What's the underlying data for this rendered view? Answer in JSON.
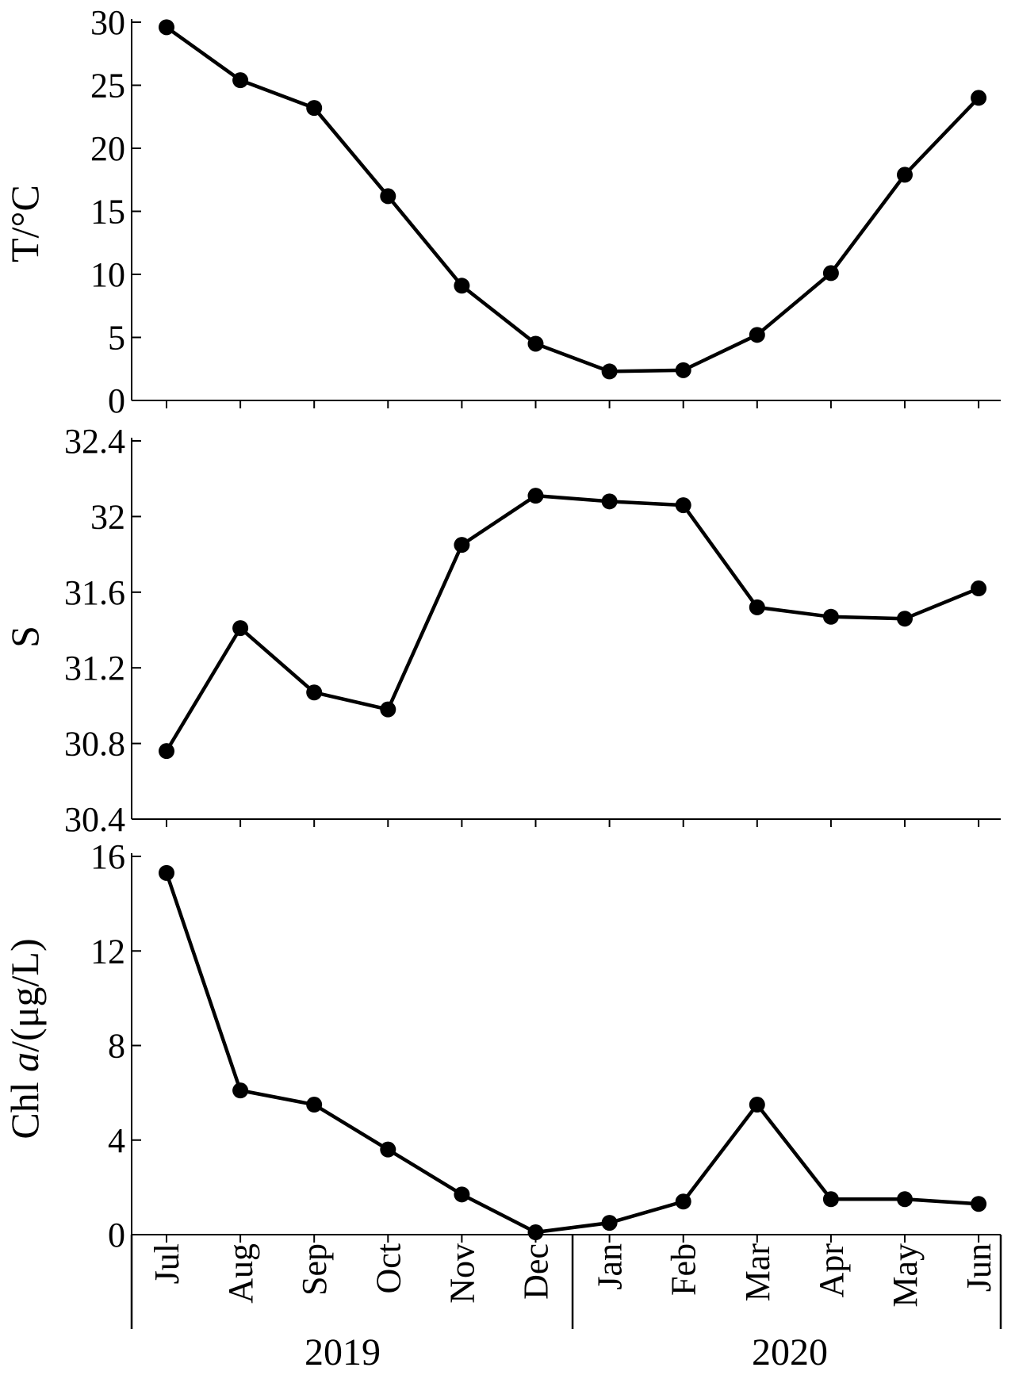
{
  "chart_data": [
    {
      "type": "line",
      "ylabel": "T/°C",
      "ylim": [
        0,
        30
      ],
      "yticks": [
        "0",
        "5",
        "10",
        "15",
        "20",
        "25",
        "30"
      ],
      "categories": [
        "Jul",
        "Aug",
        "Sep",
        "Oct",
        "Nov",
        "Dec",
        "Jan",
        "Feb",
        "Mar",
        "Apr",
        "May",
        "Jun"
      ],
      "values": [
        29.6,
        25.4,
        23.2,
        16.2,
        9.1,
        4.5,
        2.3,
        2.4,
        5.2,
        10.1,
        17.9,
        24.0
      ]
    },
    {
      "type": "line",
      "ylabel": "S",
      "ylim": [
        30.4,
        32.4
      ],
      "yticks": [
        "30.4",
        "30.8",
        "31.2",
        "31.6",
        "32",
        "32.4"
      ],
      "categories": [
        "Jul",
        "Aug",
        "Sep",
        "Oct",
        "Nov",
        "Dec",
        "Jan",
        "Feb",
        "Mar",
        "Apr",
        "May",
        "Jun"
      ],
      "values": [
        30.76,
        31.41,
        31.07,
        30.98,
        31.85,
        32.11,
        32.08,
        32.06,
        31.52,
        31.47,
        31.46,
        31.62
      ]
    },
    {
      "type": "line",
      "ylabel_prefix": "Chl ",
      "ylabel_italic": "a",
      "ylabel_suffix": "/(μg/L)",
      "ylim": [
        0,
        16
      ],
      "yticks": [
        "0",
        "4",
        "8",
        "12",
        "16"
      ],
      "categories": [
        "Jul",
        "Aug",
        "Sep",
        "Oct",
        "Nov",
        "Dec",
        "Jan",
        "Feb",
        "Mar",
        "Apr",
        "May",
        "Jun"
      ],
      "values": [
        15.3,
        6.1,
        5.5,
        3.6,
        1.7,
        0.1,
        0.5,
        1.4,
        5.5,
        1.5,
        1.5,
        1.3
      ]
    }
  ],
  "x_axis": {
    "months": [
      "Jul",
      "Aug",
      "Sep",
      "Oct",
      "Nov",
      "Dec",
      "Jan",
      "Feb",
      "Mar",
      "Apr",
      "May",
      "Jun"
    ],
    "years": [
      "2019",
      "2020"
    ]
  },
  "colors": {
    "line": "#000000",
    "marker": "#000000"
  }
}
